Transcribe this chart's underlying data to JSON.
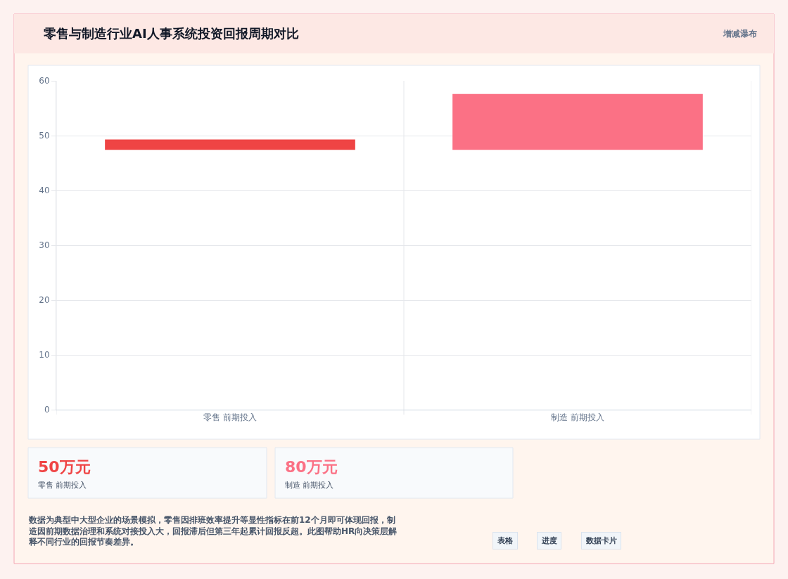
{
  "chart_data": {
    "type": "bar",
    "title": "零售与制造行业AI人事系统投资回报周期对比",
    "categories": [
      "零售 前期投入",
      "制造 前期投入"
    ],
    "base": [
      47.4,
      47.4
    ],
    "values": [
      1.9,
      10.2
    ],
    "colors": [
      "#ef4444",
      "#fb7185"
    ],
    "ylim": [
      0,
      60
    ],
    "yticks": [
      0,
      10,
      20,
      30,
      40,
      50,
      60
    ],
    "grid": true,
    "annotations": [
      "增减瀑布",
      "50万元",
      "零售 前期投入",
      "80万元",
      "制造 前期投入",
      "数据为典型中大型企业的场景模拟，零售因排班效率提升等显性指标在前12个月即可体现回报，制造因前期数据治理和系统对接投入大，回报滞后但第三年起累计回报反超。此图帮助HR向决策层解释不同行业的回报节奏差异。",
      "表格",
      "进度",
      "数据卡片"
    ]
  }
}
